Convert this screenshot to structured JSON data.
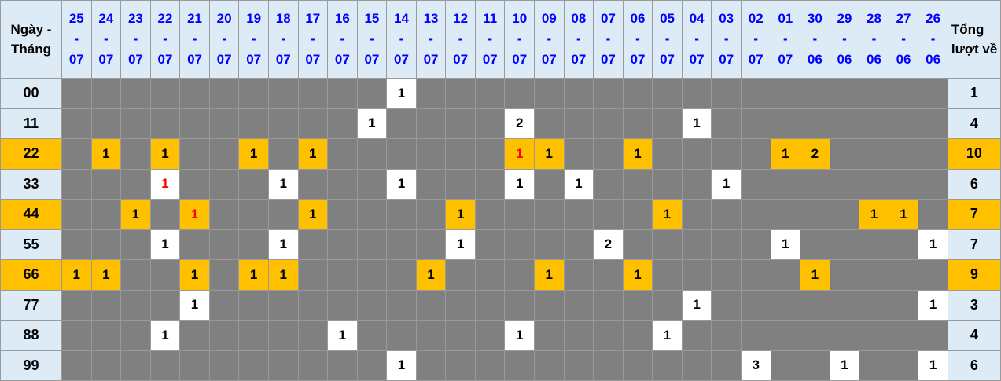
{
  "colors": {
    "header_bg": "#DDEBF7",
    "header_text": "#0000FF",
    "highlight_bg": "#FFC000",
    "empty_cell_bg": "#808080",
    "filled_cell_bg": "#FFFFFF",
    "red_text": "#FF0000",
    "border": "#9A9A9A",
    "text": "#000000"
  },
  "chart_data": {
    "type": "table",
    "corner_header": "Ngày - Tháng",
    "total_header": "Tổng lượt về",
    "columns": [
      "25-07",
      "24-07",
      "23-07",
      "22-07",
      "21-07",
      "20-07",
      "19-07",
      "18-07",
      "17-07",
      "16-07",
      "15-07",
      "14-07",
      "13-07",
      "12-07",
      "11-07",
      "10-07",
      "09-07",
      "08-07",
      "07-07",
      "06-07",
      "05-07",
      "04-07",
      "03-07",
      "02-07",
      "01-07",
      "30-06",
      "29-06",
      "28-06",
      "27-06",
      "26-06"
    ],
    "rows": [
      {
        "label": "00",
        "highlight": false,
        "total": "1",
        "cells": {
          "11": "1"
        },
        "red_cells": []
      },
      {
        "label": "11",
        "highlight": false,
        "total": "4",
        "cells": {
          "10": "1",
          "15": "2",
          "21": "1"
        },
        "red_cells": []
      },
      {
        "label": "22",
        "highlight": true,
        "total": "10",
        "cells": {
          "1": "1",
          "3": "1",
          "6": "1",
          "8": "1",
          "15": "1",
          "16": "1",
          "19": "1",
          "24": "1",
          "25": "2"
        },
        "red_cells": [
          15
        ]
      },
      {
        "label": "33",
        "highlight": false,
        "total": "6",
        "cells": {
          "3": "1",
          "7": "1",
          "11": "1",
          "15": "1",
          "17": "1",
          "22": "1"
        },
        "red_cells": [
          3
        ]
      },
      {
        "label": "44",
        "highlight": true,
        "total": "7",
        "cells": {
          "2": "1",
          "4": "1",
          "8": "1",
          "13": "1",
          "20": "1",
          "27": "1",
          "28": "1"
        },
        "red_cells": [
          4
        ]
      },
      {
        "label": "55",
        "highlight": false,
        "total": "7",
        "cells": {
          "3": "1",
          "7": "1",
          "13": "1",
          "18": "2",
          "24": "1",
          "29": "1"
        },
        "red_cells": []
      },
      {
        "label": "66",
        "highlight": true,
        "total": "9",
        "cells": {
          "0": "1",
          "1": "1",
          "4": "1",
          "6": "1",
          "7": "1",
          "12": "1",
          "16": "1",
          "19": "1",
          "25": "1"
        },
        "red_cells": []
      },
      {
        "label": "77",
        "highlight": false,
        "total": "3",
        "cells": {
          "4": "1",
          "21": "1",
          "29": "1"
        },
        "red_cells": []
      },
      {
        "label": "88",
        "highlight": false,
        "total": "4",
        "cells": {
          "3": "1",
          "9": "1",
          "15": "1",
          "20": "1"
        },
        "red_cells": []
      },
      {
        "label": "99",
        "highlight": false,
        "total": "6",
        "cells": {
          "11": "1",
          "23": "3",
          "26": "1",
          "29": "1"
        },
        "red_cells": []
      }
    ]
  }
}
